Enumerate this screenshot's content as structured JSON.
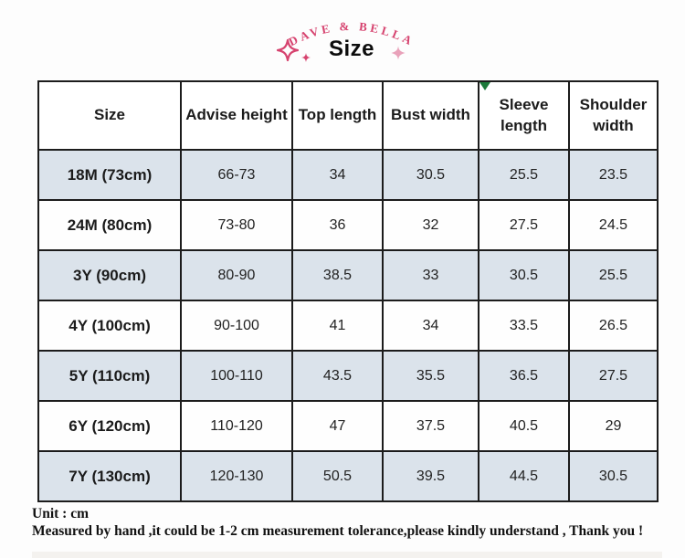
{
  "brand": {
    "name": "DAVE & BELLA"
  },
  "title": "Size",
  "colors": {
    "accent": "#d6436f",
    "accent_pale": "#e9a2ba",
    "row_stripe": "#dbe3eb",
    "table_border": "#1c1c1c",
    "corner_marker_green": "#1c7a3a"
  },
  "decorations": {
    "left_sparkle": "four-point-star-outline",
    "left_small_sparkle": "four-point-star-filled",
    "right_sparkle": "four-point-star-filled-pale"
  },
  "table": {
    "headers": [
      "Size",
      "Advise height",
      "Top length",
      "Bust width",
      "Sleeve length",
      "Shoulder width"
    ],
    "rows": [
      {
        "size": "18M (73cm)",
        "values": [
          "66-73",
          "34",
          "30.5",
          "25.5",
          "23.5"
        ]
      },
      {
        "size": "24M (80cm)",
        "values": [
          "73-80",
          "36",
          "32",
          "27.5",
          "24.5"
        ]
      },
      {
        "size": "3Y (90cm)",
        "values": [
          "80-90",
          "38.5",
          "33",
          "30.5",
          "25.5"
        ]
      },
      {
        "size": "4Y (100cm)",
        "values": [
          "90-100",
          "41",
          "34",
          "33.5",
          "26.5"
        ]
      },
      {
        "size": "5Y (110cm)",
        "values": [
          "100-110",
          "43.5",
          "35.5",
          "36.5",
          "27.5"
        ]
      },
      {
        "size": "6Y (120cm)",
        "values": [
          "110-120",
          "47",
          "37.5",
          "40.5",
          "29"
        ]
      },
      {
        "size": "7Y (130cm)",
        "values": [
          "120-130",
          "50.5",
          "39.5",
          "44.5",
          "30.5"
        ]
      }
    ]
  },
  "footer": {
    "unit": "Unit : cm",
    "note": "Measured by hand ,it could be 1-2 cm measurement tolerance,please kindly understand , Thank you !"
  }
}
